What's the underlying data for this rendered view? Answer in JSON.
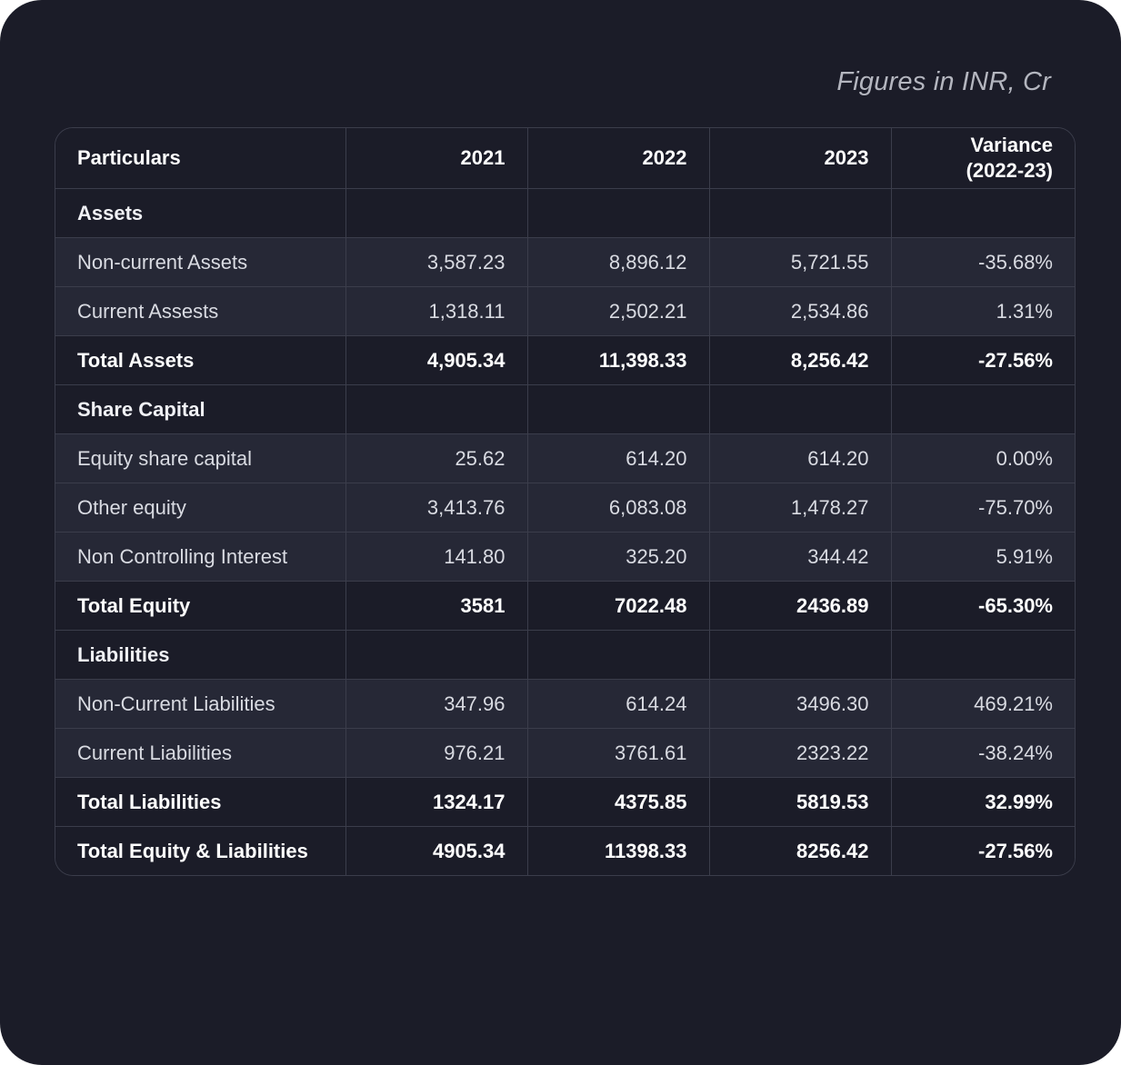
{
  "note": "Figures in INR, Cr",
  "columns": [
    "Particulars",
    "2021",
    "2022",
    "2023",
    "Variance\n(2022-23)"
  ],
  "rows": [
    {
      "type": "section",
      "cells": [
        "Assets",
        "",
        "",
        "",
        ""
      ]
    },
    {
      "type": "data",
      "cells": [
        "Non-current Assets",
        "3,587.23",
        "8,896.12",
        "5,721.55",
        "-35.68%"
      ]
    },
    {
      "type": "data",
      "cells": [
        "Current Assests",
        "1,318.11",
        "2,502.21",
        "2,534.86",
        "1.31%"
      ]
    },
    {
      "type": "total",
      "cells": [
        "Total Assets",
        "4,905.34",
        "11,398.33",
        "8,256.42",
        "-27.56%"
      ]
    },
    {
      "type": "section",
      "cells": [
        "Share Capital",
        "",
        "",
        "",
        ""
      ]
    },
    {
      "type": "data",
      "cells": [
        "Equity share capital",
        "25.62",
        "614.20",
        "614.20",
        "0.00%"
      ]
    },
    {
      "type": "data",
      "cells": [
        "Other equity",
        "3,413.76",
        "6,083.08",
        "1,478.27",
        "-75.70%"
      ]
    },
    {
      "type": "data",
      "cells": [
        "Non Controlling Interest",
        "141.80",
        "325.20",
        "344.42",
        "5.91%"
      ]
    },
    {
      "type": "total",
      "cells": [
        "Total Equity",
        "3581",
        "7022.48",
        "2436.89",
        "-65.30%"
      ]
    },
    {
      "type": "section",
      "cells": [
        "Liabilities",
        "",
        "",
        "",
        ""
      ]
    },
    {
      "type": "data",
      "cells": [
        "Non-Current Liabilities",
        "347.96",
        "614.24",
        "3496.30",
        "469.21%"
      ]
    },
    {
      "type": "data",
      "cells": [
        "Current Liabilities",
        "976.21",
        "3761.61",
        "2323.22",
        "-38.24%"
      ]
    },
    {
      "type": "total",
      "cells": [
        "Total Liabilities",
        "1324.17",
        "4375.85",
        "5819.53",
        "32.99%"
      ]
    },
    {
      "type": "total",
      "cells": [
        "Total Equity & Liabilities",
        "4905.34",
        "11398.33",
        "8256.42",
        "-27.56%"
      ]
    }
  ]
}
